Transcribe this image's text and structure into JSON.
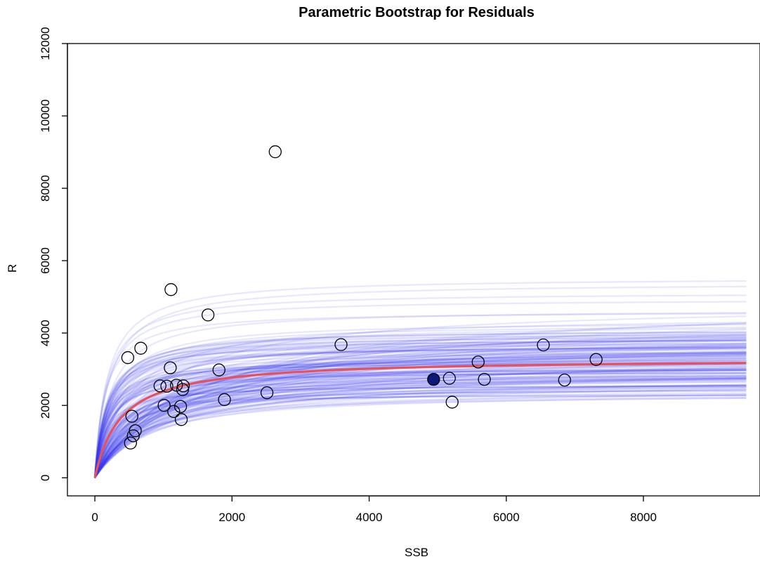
{
  "chart_data": {
    "type": "scatter",
    "title": "Parametric Bootstrap for Residuals",
    "xlabel": "SSB",
    "ylabel": "R",
    "xlim": [
      -400,
      9700
    ],
    "ylim": [
      -500,
      12000
    ],
    "xticks": [
      0,
      2000,
      4000,
      6000,
      8000
    ],
    "yticks": [
      0,
      2000,
      4000,
      6000,
      8000,
      10000,
      12000
    ],
    "grid": false,
    "observations": {
      "name": "",
      "marker": "open-circle",
      "points": [
        [
          480,
          3320
        ],
        [
          520,
          960
        ],
        [
          540,
          1700
        ],
        [
          560,
          1160
        ],
        [
          590,
          1300
        ],
        [
          670,
          3580
        ],
        [
          950,
          2540
        ],
        [
          1010,
          2000
        ],
        [
          1050,
          2530
        ],
        [
          1100,
          3040
        ],
        [
          1110,
          5200
        ],
        [
          1150,
          1830
        ],
        [
          1190,
          2560
        ],
        [
          1250,
          1970
        ],
        [
          1260,
          1610
        ],
        [
          1280,
          2440
        ],
        [
          1290,
          2540
        ],
        [
          1650,
          4500
        ],
        [
          1810,
          2980
        ],
        [
          1890,
          2160
        ],
        [
          2510,
          2350
        ],
        [
          2630,
          9010
        ],
        [
          3590,
          3680
        ],
        [
          5170,
          2750
        ],
        [
          5210,
          2090
        ],
        [
          5590,
          3200
        ],
        [
          5680,
          2720
        ],
        [
          6540,
          3670
        ],
        [
          6850,
          2700
        ],
        [
          7310,
          3270
        ]
      ]
    },
    "highlight_point": {
      "x": 4940,
      "y": 2720,
      "color": "#0a1a7a"
    },
    "fitted_curve": {
      "model": "Beverton-Holt",
      "a": 3300,
      "b": 380,
      "x_max": 9500,
      "color": "#e8505b"
    },
    "bootstrap_curves": {
      "count": 160,
      "color": "#3a3af0",
      "x_max": 9500,
      "a_range": [
        2000,
        7200
      ],
      "b_range": [
        150,
        1900
      ]
    }
  }
}
